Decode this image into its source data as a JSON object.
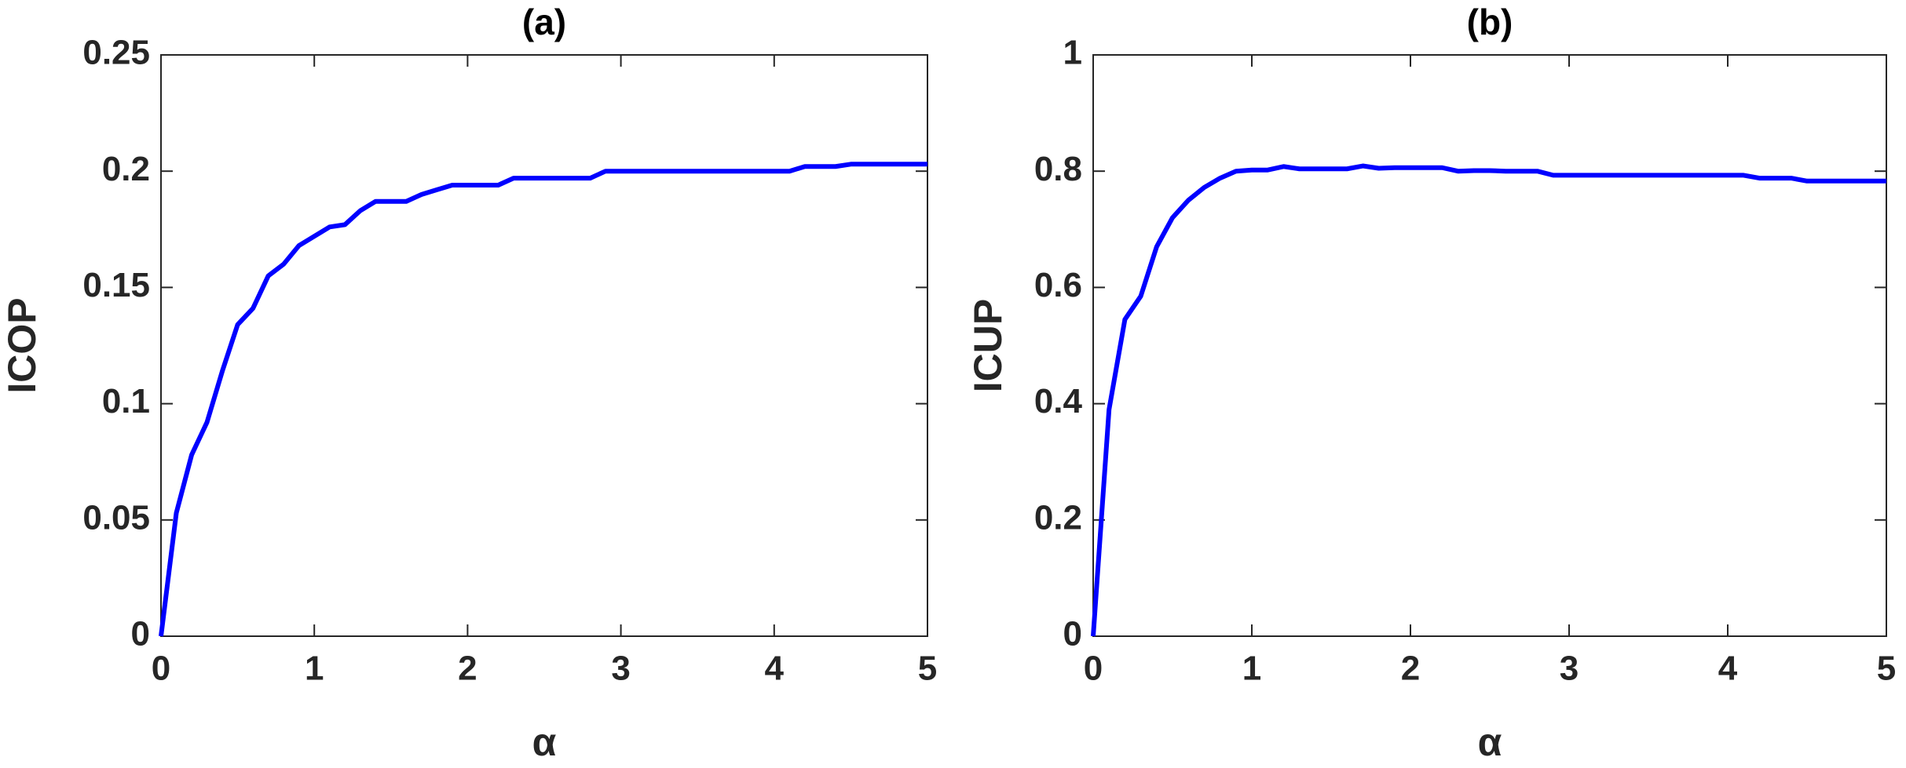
{
  "chart_data": [
    {
      "type": "line",
      "title": "(a)",
      "x_label": "α",
      "y_label": "ICOP",
      "x": [
        0,
        0.1,
        0.2,
        0.3,
        0.4,
        0.5,
        0.6,
        0.7,
        0.8,
        0.9,
        1,
        1.1,
        1.2,
        1.3,
        1.4,
        1.5,
        1.6,
        1.7,
        1.8,
        1.9,
        2,
        2.1,
        2.2,
        2.3,
        2.4,
        2.5,
        2.6,
        2.7,
        2.8,
        2.9,
        3,
        3.1,
        3.2,
        3.3,
        3.4,
        3.5,
        3.6,
        3.7,
        3.8,
        3.9,
        4,
        4.1,
        4.2,
        4.3,
        4.4,
        4.5,
        4.6,
        4.7,
        4.8,
        4.9,
        5
      ],
      "values": [
        0,
        0.053,
        0.078,
        0.092,
        0.114,
        0.134,
        0.141,
        0.155,
        0.16,
        0.168,
        0.172,
        0.176,
        0.177,
        0.183,
        0.187,
        0.187,
        0.187,
        0.19,
        0.192,
        0.194,
        0.194,
        0.194,
        0.194,
        0.197,
        0.197,
        0.197,
        0.197,
        0.197,
        0.197,
        0.2,
        0.2,
        0.2,
        0.2,
        0.2,
        0.2,
        0.2,
        0.2,
        0.2,
        0.2,
        0.2,
        0.2,
        0.2,
        0.202,
        0.202,
        0.202,
        0.203,
        0.203,
        0.203,
        0.203,
        0.203,
        0.203
      ],
      "color": "#0000ff",
      "xlim": [
        0,
        5
      ],
      "xticks": [
        0,
        1,
        2,
        3,
        4,
        5
      ],
      "ylim": [
        0,
        0.25
      ],
      "yticks": [
        0,
        0.05,
        0.1,
        0.15,
        0.2,
        0.25
      ]
    },
    {
      "type": "line",
      "title": "(b)",
      "x_label": "α",
      "y_label": "ICUP",
      "x": [
        0,
        0.1,
        0.2,
        0.3,
        0.4,
        0.5,
        0.6,
        0.7,
        0.8,
        0.9,
        1,
        1.1,
        1.2,
        1.3,
        1.4,
        1.5,
        1.6,
        1.7,
        1.8,
        1.9,
        2,
        2.1,
        2.2,
        2.3,
        2.4,
        2.5,
        2.6,
        2.7,
        2.8,
        2.9,
        3,
        3.1,
        3.2,
        3.3,
        3.4,
        3.5,
        3.6,
        3.7,
        3.8,
        3.9,
        4,
        4.1,
        4.2,
        4.3,
        4.4,
        4.5,
        4.6,
        4.7,
        4.8,
        4.9,
        5
      ],
      "values": [
        0,
        0.39,
        0.545,
        0.585,
        0.67,
        0.72,
        0.75,
        0.772,
        0.788,
        0.8,
        0.802,
        0.802,
        0.808,
        0.804,
        0.804,
        0.804,
        0.804,
        0.809,
        0.805,
        0.806,
        0.806,
        0.806,
        0.806,
        0.8,
        0.801,
        0.801,
        0.8,
        0.8,
        0.8,
        0.793,
        0.793,
        0.793,
        0.793,
        0.793,
        0.793,
        0.793,
        0.793,
        0.793,
        0.793,
        0.793,
        0.793,
        0.793,
        0.788,
        0.788,
        0.788,
        0.783,
        0.783,
        0.783,
        0.783,
        0.783,
        0.783
      ],
      "color": "#0000ff",
      "xlim": [
        0,
        5
      ],
      "xticks": [
        0,
        1,
        2,
        3,
        4,
        5
      ],
      "ylim": [
        0,
        1
      ],
      "yticks": [
        0,
        0.2,
        0.4,
        0.6,
        0.8,
        1
      ]
    }
  ]
}
